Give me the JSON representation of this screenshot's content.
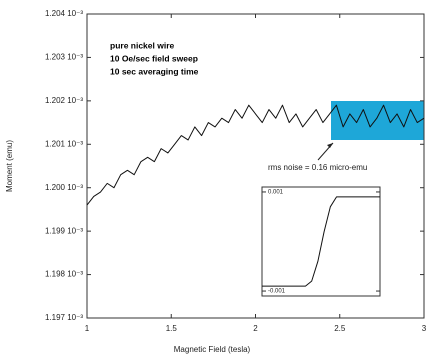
{
  "chart_data": [
    {
      "type": "line",
      "xlabel": "Magnetic Field (tesla)",
      "ylabel": "Moment (emu)",
      "annotations": [
        "pure nickel wire",
        "10 Oe/sec field sweep",
        "10 sec averaging time"
      ],
      "note": "rms noise = 0.16 micro-emu",
      "x": [
        1,
        1.04,
        1.08,
        1.12,
        1.16,
        1.2,
        1.24,
        1.28,
        1.32,
        1.36,
        1.4,
        1.44,
        1.48,
        1.52,
        1.56,
        1.6,
        1.64,
        1.68,
        1.72,
        1.76,
        1.8,
        1.84,
        1.88,
        1.92,
        1.96,
        2,
        2.04,
        2.08,
        2.12,
        2.16,
        2.2,
        2.24,
        2.28,
        2.32,
        2.36,
        2.4,
        2.44,
        2.48,
        2.52,
        2.56,
        2.6,
        2.64,
        2.68,
        2.72,
        2.76,
        2.8,
        2.84,
        2.88,
        2.92,
        2.96,
        3
      ],
      "values": [
        0.0011996,
        0.0011998,
        0.0011999,
        0.0012001,
        0.0012,
        0.0012003,
        0.0012004,
        0.0012003,
        0.0012006,
        0.0012007,
        0.0012006,
        0.0012009,
        0.0012008,
        0.001201,
        0.0012012,
        0.0012011,
        0.0012014,
        0.0012012,
        0.0012015,
        0.0012014,
        0.0012016,
        0.0012015,
        0.0012018,
        0.0012016,
        0.0012019,
        0.0012017,
        0.0012015,
        0.0012018,
        0.0012016,
        0.0012019,
        0.0012015,
        0.0012017,
        0.0012014,
        0.0012016,
        0.0012018,
        0.0012015,
        0.0012017,
        0.0012019,
        0.0012014,
        0.0012017,
        0.0012015,
        0.0012018,
        0.0012014,
        0.0012016,
        0.0012019,
        0.0012015,
        0.0012017,
        0.0012014,
        0.0012018,
        0.0012015,
        0.0012016
      ],
      "color": "#111111",
      "xlim": [
        1,
        3
      ],
      "xticks": [
        1,
        1.5,
        2,
        2.5,
        3
      ],
      "ylim": [
        0.001197,
        0.001204
      ],
      "yticks": [
        {
          "value": 0.001197,
          "label": "1.197 10⁻³"
        },
        {
          "value": 0.001198,
          "label": "1.198 10⁻³"
        },
        {
          "value": 0.001199,
          "label": "1.199 10⁻³"
        },
        {
          "value": 0.0012,
          "label": "1.200 10⁻³"
        },
        {
          "value": 0.001201,
          "label": "1.201 10⁻³"
        },
        {
          "value": 0.001202,
          "label": "1.202 10⁻³"
        },
        {
          "value": 0.001203,
          "label": "1.203 10⁻³"
        },
        {
          "value": 0.001204,
          "label": "1.204 10⁻³"
        }
      ],
      "grid": false
    },
    {
      "type": "line",
      "values": [
        -0.0009,
        -0.0009,
        -0.0009,
        -0.0009,
        -0.0009,
        -0.0009,
        -0.0009,
        -0.0009,
        -0.0008,
        -0.0004,
        0.0002,
        0.0007,
        0.0009,
        0.0009,
        0.0009,
        0.0009,
        0.0009,
        0.0009,
        0.0009,
        0.0009
      ],
      "color": "#111111",
      "ylim": [
        -0.0011,
        0.0011
      ],
      "yticks": [
        0.001,
        -0.001
      ],
      "grid": false
    }
  ]
}
